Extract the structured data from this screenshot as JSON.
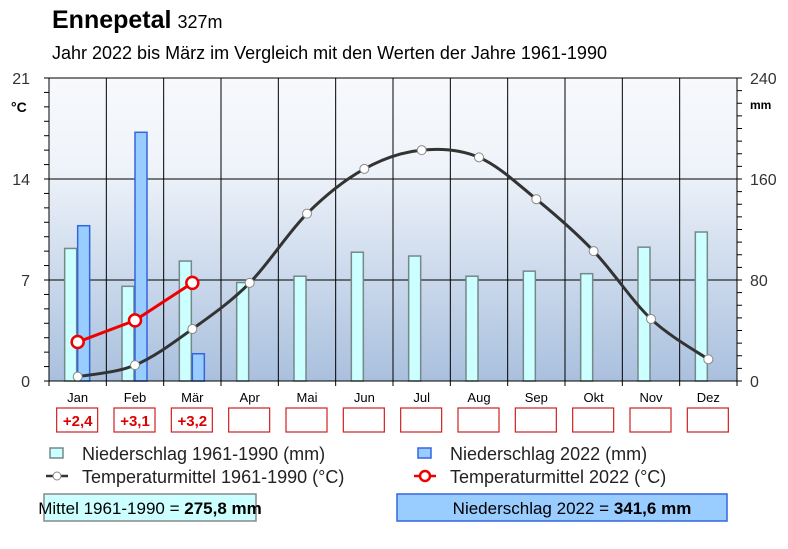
{
  "title": "Ennepetal",
  "elevation": "327m",
  "subtitle": "Jahr 2022 bis März im Vergleich mit den Werten der Jahre 1961-1990",
  "chart_data": {
    "type": "bar+line",
    "categories": [
      "Jan",
      "Feb",
      "Mär",
      "Apr",
      "Mai",
      "Jun",
      "Jul",
      "Aug",
      "Sep",
      "Okt",
      "Nov",
      "Dez"
    ],
    "left_axis": {
      "label": "°C",
      "range": [
        0,
        21
      ],
      "ticks": [
        0,
        7,
        14,
        21
      ]
    },
    "right_axis": {
      "label": "mm",
      "range": [
        0,
        240
      ],
      "ticks": [
        0,
        80,
        160,
        240
      ]
    },
    "grid": true,
    "series": [
      {
        "name": "Niederschlag 1961-1990 (mm)",
        "type": "bar",
        "axis": "right",
        "color": "#ccffff",
        "stroke": "#778888",
        "values": [
          105,
          75,
          95,
          78,
          83,
          102,
          99,
          83,
          87,
          85,
          106,
          118
        ]
      },
      {
        "name": "Niederschlag 2022 (mm)",
        "type": "bar",
        "axis": "right",
        "color": "#99ccff",
        "stroke": "#3366dd",
        "values": [
          123,
          197,
          21.6,
          null,
          null,
          null,
          null,
          null,
          null,
          null,
          null,
          null
        ]
      },
      {
        "name": "Temperaturmittel 1961-1990 (°C)",
        "type": "line",
        "axis": "left",
        "color": "#333333",
        "values": [
          0.3,
          1.1,
          3.6,
          6.8,
          11.6,
          14.7,
          16.0,
          15.5,
          12.6,
          9.0,
          4.3,
          1.5
        ]
      },
      {
        "name": "Temperaturmittel 2022 (°C)",
        "type": "line",
        "axis": "left",
        "color": "#ee0000",
        "values": [
          2.7,
          4.2,
          6.8,
          null,
          null,
          null,
          null,
          null,
          null,
          null,
          null,
          null
        ]
      }
    ],
    "anomalies": [
      "+2,4",
      "+3,1",
      "+3,2",
      "",
      "",
      "",
      "",
      "",
      "",
      "",
      "",
      ""
    ],
    "legend_placement": "bottom"
  },
  "summary": {
    "mean_label": "Mittel 1961-1990 = ",
    "mean_value": "275,8 mm",
    "current_label": "Niederschlag 2022 = ",
    "current_value": "341,6 mm"
  }
}
